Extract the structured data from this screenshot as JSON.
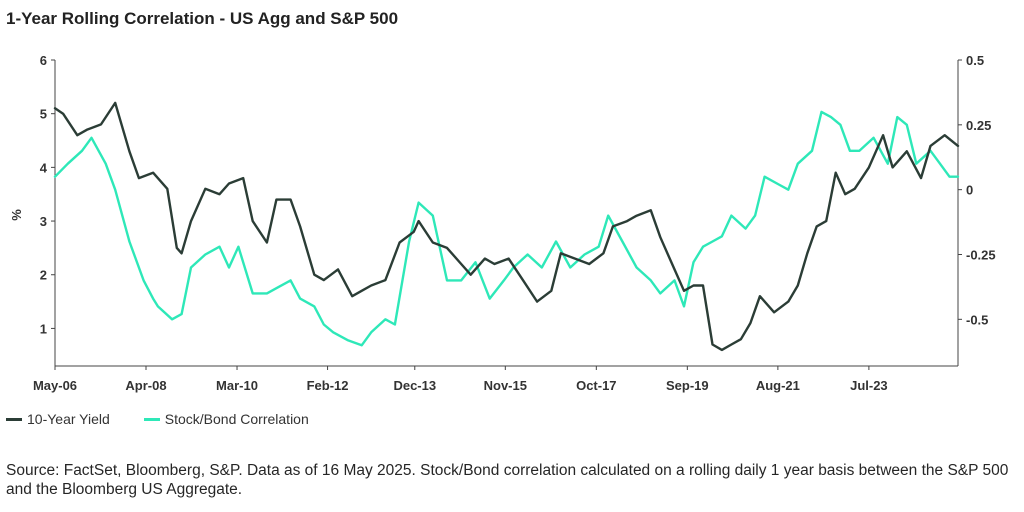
{
  "chart_data": {
    "type": "line",
    "title": "1-Year Rolling Correlation - US Agg and S&P 500",
    "ylabel": "%",
    "ylim": [
      0.3,
      6
    ],
    "y2lim": [
      -0.68,
      0.5
    ],
    "yticks": [
      1,
      2,
      3,
      4,
      5,
      6
    ],
    "y2ticks": [
      0.5,
      0.25,
      0,
      -0.25,
      -0.5
    ],
    "y2tick_labels": [
      "0.5",
      "0.25",
      "0",
      "-0.25",
      "-0.5"
    ],
    "xlim": [
      2006.33,
      2025.38
    ],
    "x_ticks": [
      {
        "label": "May-06",
        "x": 2006.33
      },
      {
        "label": "Apr-08",
        "x": 2008.25
      },
      {
        "label": "Mar-10",
        "x": 2010.17
      },
      {
        "label": "Feb-12",
        "x": 2012.08
      },
      {
        "label": "Dec-13",
        "x": 2013.92
      },
      {
        "label": "Nov-15",
        "x": 2015.83
      },
      {
        "label": "Oct-17",
        "x": 2017.75
      },
      {
        "label": "Sep-19",
        "x": 2019.67
      },
      {
        "label": "Aug-21",
        "x": 2021.58
      },
      {
        "label": "Jul-23",
        "x": 2023.5
      }
    ],
    "series": [
      {
        "name": "10-Year Yield",
        "axis": "left",
        "color": "#2b3d36",
        "x": [
          2006.33,
          2006.5,
          2006.8,
          2007.0,
          2007.3,
          2007.6,
          2007.9,
          2008.1,
          2008.4,
          2008.7,
          2008.9,
          2009.0,
          2009.2,
          2009.5,
          2009.8,
          2010.0,
          2010.3,
          2010.5,
          2010.8,
          2011.0,
          2011.3,
          2011.5,
          2011.8,
          2012.0,
          2012.3,
          2012.6,
          2012.8,
          2013.0,
          2013.3,
          2013.6,
          2013.9,
          2014.0,
          2014.3,
          2014.6,
          2014.9,
          2015.1,
          2015.4,
          2015.6,
          2015.9,
          2016.2,
          2016.5,
          2016.8,
          2017.0,
          2017.3,
          2017.6,
          2017.9,
          2018.1,
          2018.4,
          2018.6,
          2018.9,
          2019.1,
          2019.4,
          2019.6,
          2019.8,
          2020.0,
          2020.2,
          2020.4,
          2020.6,
          2020.8,
          2021.0,
          2021.2,
          2021.5,
          2021.8,
          2022.0,
          2022.2,
          2022.4,
          2022.6,
          2022.8,
          2023.0,
          2023.2,
          2023.5,
          2023.8,
          2024.0,
          2024.3,
          2024.6,
          2024.8,
          2025.1,
          2025.38
        ],
        "y": [
          5.1,
          5.0,
          4.6,
          4.7,
          4.8,
          5.2,
          4.3,
          3.8,
          3.9,
          3.6,
          2.5,
          2.4,
          3.0,
          3.6,
          3.5,
          3.7,
          3.8,
          3.0,
          2.6,
          3.4,
          3.4,
          2.9,
          2.0,
          1.9,
          2.1,
          1.6,
          1.7,
          1.8,
          1.9,
          2.6,
          2.8,
          3.0,
          2.6,
          2.5,
          2.2,
          2.0,
          2.3,
          2.2,
          2.3,
          1.9,
          1.5,
          1.7,
          2.4,
          2.3,
          2.2,
          2.4,
          2.9,
          3.0,
          3.1,
          3.2,
          2.7,
          2.1,
          1.7,
          1.8,
          1.8,
          0.7,
          0.6,
          0.7,
          0.8,
          1.1,
          1.6,
          1.3,
          1.5,
          1.8,
          2.4,
          2.9,
          3.0,
          3.9,
          3.5,
          3.6,
          4.0,
          4.6,
          4.0,
          4.3,
          3.8,
          4.4,
          4.6,
          4.4
        ]
      },
      {
        "name": "Stock/Bond Correlation",
        "axis": "right",
        "color": "#2ee8b8",
        "x": [
          2006.33,
          2006.6,
          2006.9,
          2007.1,
          2007.4,
          2007.6,
          2007.9,
          2008.2,
          2008.4,
          2008.5,
          2008.8,
          2009.0,
          2009.2,
          2009.5,
          2009.8,
          2010.0,
          2010.2,
          2010.5,
          2010.8,
          2011.0,
          2011.3,
          2011.5,
          2011.8,
          2012.0,
          2012.2,
          2012.5,
          2012.8,
          2013.0,
          2013.3,
          2013.5,
          2013.8,
          2014.0,
          2014.3,
          2014.6,
          2014.9,
          2015.2,
          2015.5,
          2015.8,
          2016.0,
          2016.3,
          2016.6,
          2016.9,
          2017.2,
          2017.5,
          2017.8,
          2018.0,
          2018.3,
          2018.6,
          2018.9,
          2019.1,
          2019.4,
          2019.6,
          2019.8,
          2020.0,
          2020.2,
          2020.4,
          2020.6,
          2020.9,
          2021.1,
          2021.3,
          2021.6,
          2021.8,
          2022.0,
          2022.3,
          2022.5,
          2022.7,
          2022.9,
          2023.1,
          2023.3,
          2023.6,
          2023.9,
          2024.1,
          2024.3,
          2024.5,
          2024.8,
          2025.0,
          2025.2,
          2025.38
        ],
        "y": [
          0.05,
          0.1,
          0.15,
          0.2,
          0.1,
          0.0,
          -0.2,
          -0.35,
          -0.42,
          -0.45,
          -0.5,
          -0.48,
          -0.3,
          -0.25,
          -0.22,
          -0.3,
          -0.22,
          -0.4,
          -0.4,
          -0.38,
          -0.35,
          -0.42,
          -0.45,
          -0.52,
          -0.55,
          -0.58,
          -0.6,
          -0.55,
          -0.5,
          -0.52,
          -0.2,
          -0.05,
          -0.1,
          -0.35,
          -0.35,
          -0.28,
          -0.42,
          -0.35,
          -0.3,
          -0.25,
          -0.3,
          -0.2,
          -0.3,
          -0.25,
          -0.22,
          -0.1,
          -0.2,
          -0.3,
          -0.35,
          -0.4,
          -0.35,
          -0.45,
          -0.28,
          -0.22,
          -0.2,
          -0.18,
          -0.1,
          -0.15,
          -0.1,
          0.05,
          0.02,
          0.0,
          0.1,
          0.15,
          0.3,
          0.28,
          0.25,
          0.15,
          0.15,
          0.2,
          0.1,
          0.28,
          0.25,
          0.1,
          0.15,
          0.1,
          0.05,
          0.05
        ]
      }
    ]
  },
  "legend": {
    "items": [
      {
        "label": "10-Year Yield",
        "color": "#2b3d36"
      },
      {
        "label": "Stock/Bond Correlation",
        "color": "#2ee8b8"
      }
    ]
  },
  "footer": {
    "source": "Source: FactSet, Bloomberg, S&P. Data as of 16 May 2025. Stock/Bond correlation calculated on a rolling daily 1 year basis between the S&P 500 and the Bloomberg US Aggregate."
  }
}
